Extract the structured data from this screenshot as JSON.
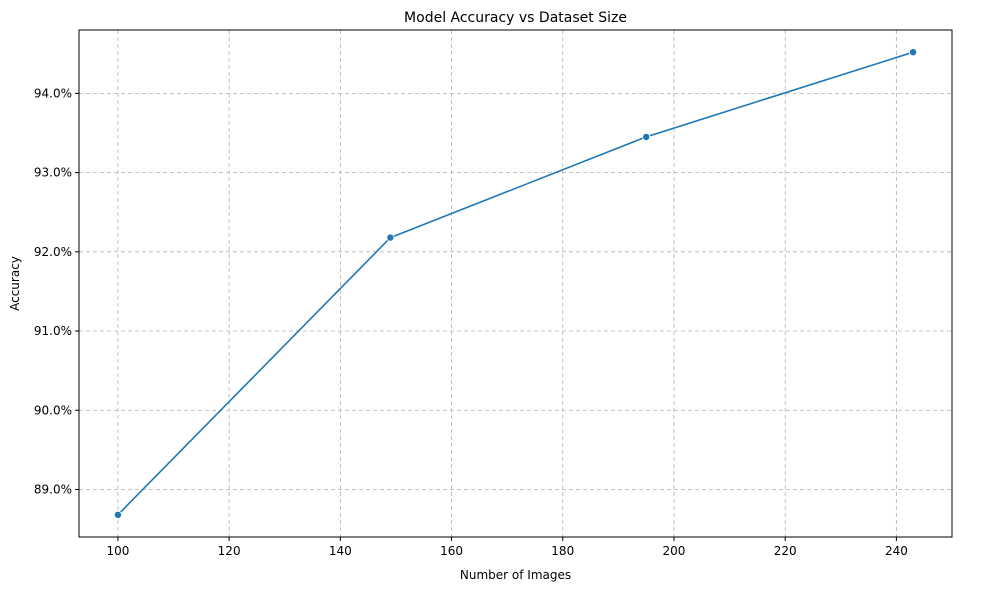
{
  "chart_data": {
    "type": "line",
    "title": "Model Accuracy vs Dataset Size",
    "xlabel": "Number of Images",
    "ylabel": "Accuracy",
    "xlim": [
      93,
      250
    ],
    "ylim": [
      88.4,
      94.8
    ],
    "x_ticks": [
      100,
      120,
      140,
      160,
      180,
      200,
      220,
      240
    ],
    "y_ticks": [
      89.0,
      90.0,
      91.0,
      92.0,
      93.0,
      94.0
    ],
    "y_tick_labels": [
      "89.0%",
      "90.0%",
      "91.0%",
      "92.0%",
      "93.0%",
      "94.0%"
    ],
    "grid": true,
    "grid_style": "dashed",
    "legend": "none",
    "series": [
      {
        "color": "#1f77b4",
        "marker": "circle",
        "x": [
          100,
          149,
          195,
          243
        ],
        "y": [
          88.68,
          92.18,
          93.45,
          94.52
        ]
      }
    ]
  }
}
